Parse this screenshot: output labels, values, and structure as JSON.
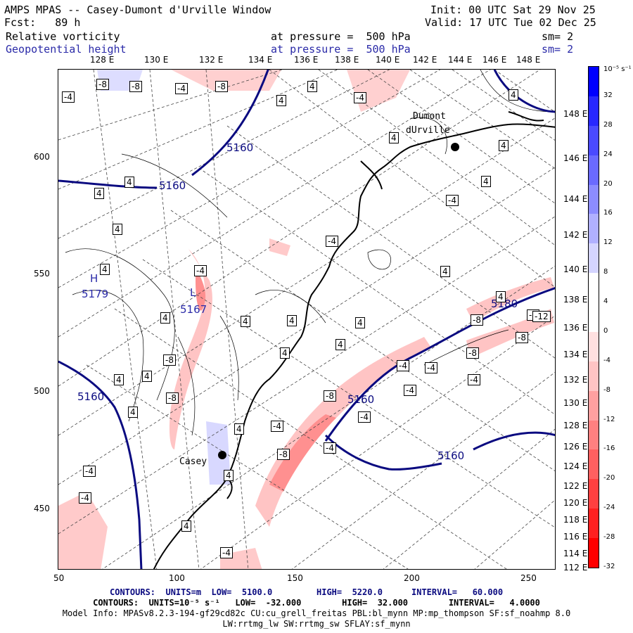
{
  "header": {
    "title": "AMPS MPAS -- Casey-Dumont d'Urville Window",
    "init": "Init: 00 UTC Sat 29 Nov 25",
    "fcst": "Fcst:   89 h",
    "valid": "Valid: 17 UTC Tue 02 Dec 25",
    "field1_name": "Relative vorticity",
    "field1_level": "at pressure =  500 hPa",
    "field1_sm": "sm= 2",
    "field2_name": "Geopotential height",
    "field2_level": "at pressure =  500 hPa",
    "field2_sm": "sm= 2"
  },
  "top_lon_labels": [
    "128 E",
    "130 E",
    "132 E",
    "134 E",
    "136 E",
    "138 E",
    "140 E",
    "142 E",
    "144 E",
    "146 E",
    "148 E"
  ],
  "right_lat_labels": [
    "148 E",
    "146 E",
    "144 E",
    "142 E",
    "140 E",
    "138 E",
    "136 E",
    "134 E",
    "132 E",
    "130 E",
    "128 E",
    "126 E",
    "124 E",
    "122 E",
    "120 E",
    "118 E",
    "116 E",
    "114 E",
    "112 E"
  ],
  "x_axis_labels": [
    "50",
    "100",
    "150",
    "200",
    "250"
  ],
  "y_axis_labels": [
    "600",
    "550",
    "500",
    "450"
  ],
  "colorbar": {
    "unit": "10⁻⁵ s⁻¹",
    "labels": [
      "32",
      "28",
      "24",
      "20",
      "16",
      "12",
      "8",
      "4",
      "0",
      "-4",
      "-8",
      "-12",
      "-16",
      "-20",
      "-24",
      "-28",
      "-32"
    ],
    "colors": [
      "#0000ff",
      "#2828ff",
      "#4a4aff",
      "#6a6aff",
      "#8c8cff",
      "#b0b0ff",
      "#d4d4ff",
      "#ffffff",
      "#ffffff",
      "#ffe0e0",
      "#ffc4c4",
      "#ffa0a0",
      "#ff8080",
      "#ff6060",
      "#ff4040",
      "#ff2020",
      "#ff0000"
    ]
  },
  "places": {
    "dumont": "Dumont",
    "durville": "dUrville",
    "casey": "Casey"
  },
  "height_labels": {
    "h5160a": "5160",
    "h5160b": "5160",
    "h5160c": "5160",
    "h5160d": "5160",
    "h5160e": "5160",
    "h5180": "5180",
    "hH": "H",
    "h5179": "5179",
    "hL": "L",
    "h5167": "5167"
  },
  "vort_labels": [
    "-4",
    "-8",
    "-8",
    "-4",
    "-8",
    "4",
    "-4",
    "4",
    "4",
    "4",
    "4",
    "4",
    "4",
    "4",
    "4",
    "-4",
    "4",
    "4",
    "-4",
    "4",
    "4",
    "4",
    "4",
    "4",
    "4",
    "-8",
    "-8",
    "4",
    "4",
    "4",
    "-4",
    "-8",
    "-4",
    "4",
    "-4",
    "-8",
    "-4",
    "-4",
    "-8",
    "-4",
    "-4",
    "4",
    "-4",
    "-12",
    "-8",
    "-8",
    "-4",
    "4",
    "-4",
    "4",
    "-4",
    "-4"
  ],
  "footer": {
    "line1_a": "CONTOURS:  UNITS=m  LOW=  5100.0",
    "line1_b": "HIGH=  5220.0",
    "line1_c": "INTERVAL=   60.000",
    "line2": "CONTOURS:  UNITS=10⁻⁵ s⁻¹   LOW=  -32.000        HIGH=  32.000        INTERVAL=   4.0000",
    "line3": "Model Info: MPASv8.2.3-194-gf29cd82c CU:cu_grell_freitas PBL:bl_mynn MP:mp_thompson SF:sf_noahmp 8.0",
    "line4": "LW:rrtmg_lw SW:rrtmg_sw SFLAY:sf_mynn"
  }
}
